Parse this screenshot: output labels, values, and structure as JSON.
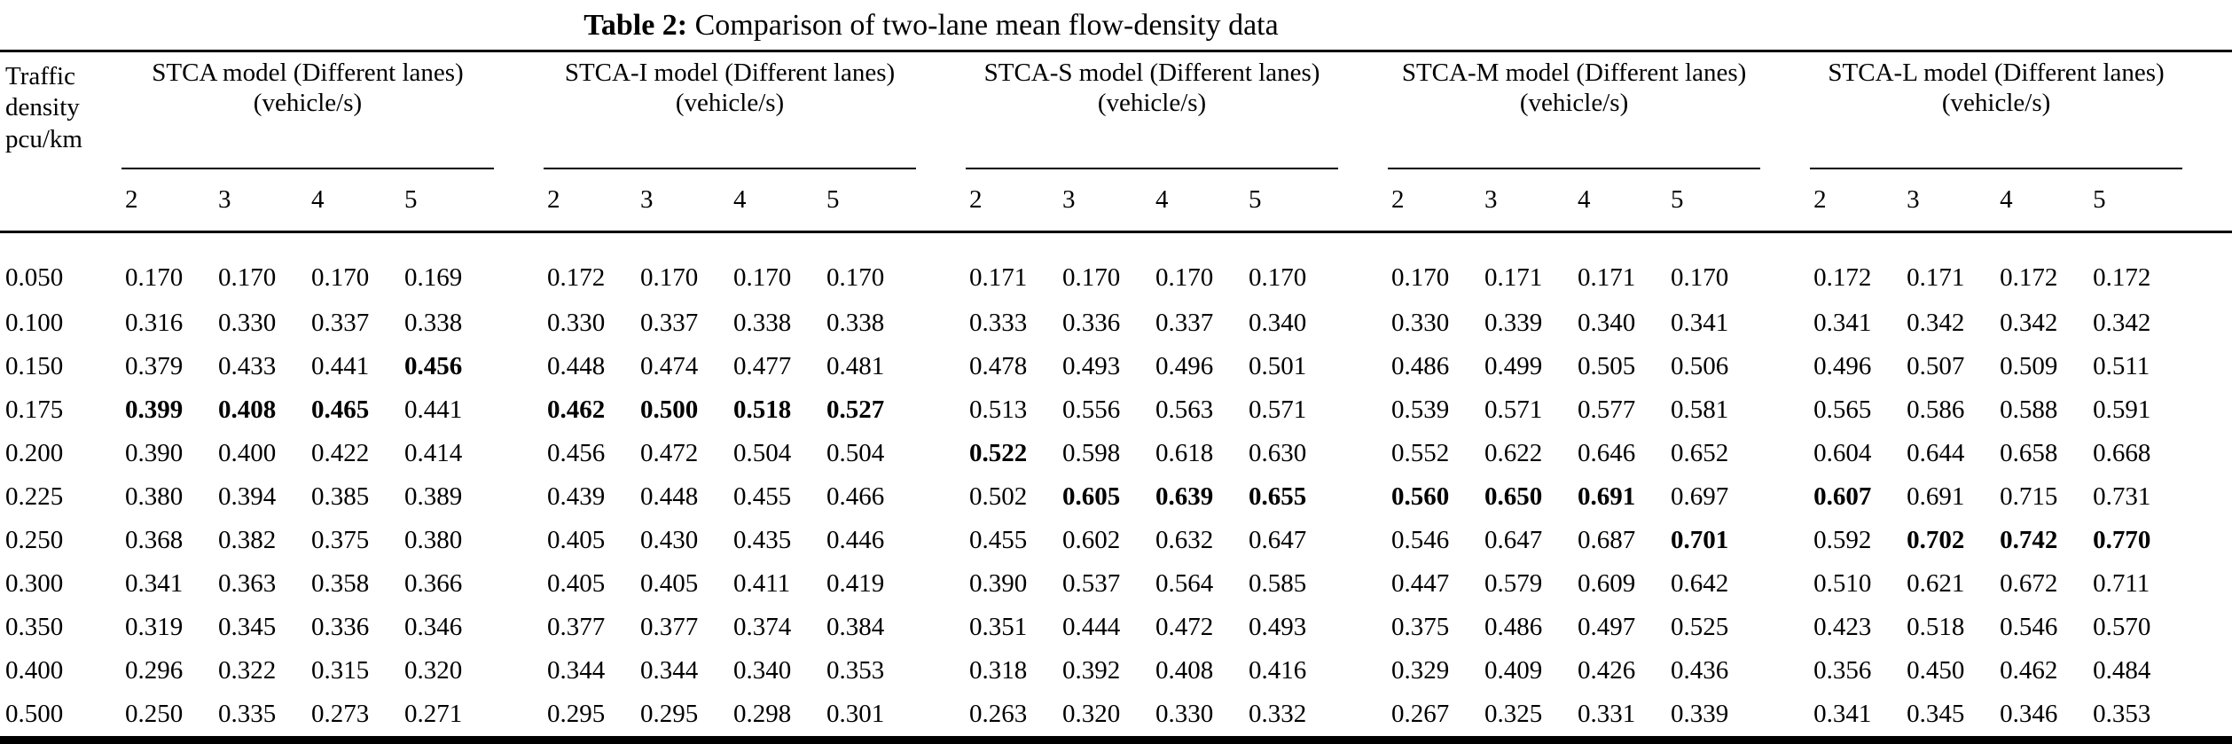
{
  "caption": {
    "label": "Table 2:",
    "text": "Comparison of two-lane mean flow-density data"
  },
  "table": {
    "density_header_lines": [
      "Traffic",
      "density",
      "pcu/km"
    ],
    "groups": [
      {
        "label": "STCA model (Different lanes) (vehicle/s)"
      },
      {
        "label": "STCA-I model (Different lanes) (vehicle/s)"
      },
      {
        "label": "STCA-S model (Different lanes) (vehicle/s)"
      },
      {
        "label": "STCA-M model (Different lanes) (vehicle/s)"
      },
      {
        "label": "STCA-L model (Different lanes) (vehicle/s)"
      }
    ],
    "lane_labels": [
      "2",
      "3",
      "4",
      "5"
    ],
    "rows": [
      {
        "density": "0.050",
        "cells": [
          "0.170",
          "0.170",
          "0.170",
          "0.169",
          "0.172",
          "0.170",
          "0.170",
          "0.170",
          "0.171",
          "0.170",
          "0.170",
          "0.170",
          "0.170",
          "0.171",
          "0.171",
          "0.170",
          "0.172",
          "0.171",
          "0.172",
          "0.172"
        ],
        "bold": []
      },
      {
        "density": "0.100",
        "cells": [
          "0.316",
          "0.330",
          "0.337",
          "0.338",
          "0.330",
          "0.337",
          "0.338",
          "0.338",
          "0.333",
          "0.336",
          "0.337",
          "0.340",
          "0.330",
          "0.339",
          "0.340",
          "0.341",
          "0.341",
          "0.342",
          "0.342",
          "0.342"
        ],
        "bold": []
      },
      {
        "density": "0.150",
        "cells": [
          "0.379",
          "0.433",
          "0.441",
          "0.456",
          "0.448",
          "0.474",
          "0.477",
          "0.481",
          "0.478",
          "0.493",
          "0.496",
          "0.501",
          "0.486",
          "0.499",
          "0.505",
          "0.506",
          "0.496",
          "0.507",
          "0.509",
          "0.511"
        ],
        "bold": [
          3
        ]
      },
      {
        "density": "0.175",
        "cells": [
          "0.399",
          "0.408",
          "0.465",
          "0.441",
          "0.462",
          "0.500",
          "0.518",
          "0.527",
          "0.513",
          "0.556",
          "0.563",
          "0.571",
          "0.539",
          "0.571",
          "0.577",
          "0.581",
          "0.565",
          "0.586",
          "0.588",
          "0.591"
        ],
        "bold": [
          0,
          1,
          2,
          4,
          5,
          6,
          7
        ]
      },
      {
        "density": "0.200",
        "cells": [
          "0.390",
          "0.400",
          "0.422",
          "0.414",
          "0.456",
          "0.472",
          "0.504",
          "0.504",
          "0.522",
          "0.598",
          "0.618",
          "0.630",
          "0.552",
          "0.622",
          "0.646",
          "0.652",
          "0.604",
          "0.644",
          "0.658",
          "0.668"
        ],
        "bold": [
          8
        ]
      },
      {
        "density": "0.225",
        "cells": [
          "0.380",
          "0.394",
          "0.385",
          "0.389",
          "0.439",
          "0.448",
          "0.455",
          "0.466",
          "0.502",
          "0.605",
          "0.639",
          "0.655",
          "0.560",
          "0.650",
          "0.691",
          "0.697",
          "0.607",
          "0.691",
          "0.715",
          "0.731"
        ],
        "bold": [
          9,
          10,
          11,
          12,
          13,
          14,
          16
        ]
      },
      {
        "density": "0.250",
        "cells": [
          "0.368",
          "0.382",
          "0.375",
          "0.380",
          "0.405",
          "0.430",
          "0.435",
          "0.446",
          "0.455",
          "0.602",
          "0.632",
          "0.647",
          "0.546",
          "0.647",
          "0.687",
          "0.701",
          "0.592",
          "0.702",
          "0.742",
          "0.770"
        ],
        "bold": [
          15,
          17,
          18,
          19
        ]
      },
      {
        "density": "0.300",
        "cells": [
          "0.341",
          "0.363",
          "0.358",
          "0.366",
          "0.405",
          "0.405",
          "0.411",
          "0.419",
          "0.390",
          "0.537",
          "0.564",
          "0.585",
          "0.447",
          "0.579",
          "0.609",
          "0.642",
          "0.510",
          "0.621",
          "0.672",
          "0.711"
        ],
        "bold": []
      },
      {
        "density": "0.350",
        "cells": [
          "0.319",
          "0.345",
          "0.336",
          "0.346",
          "0.377",
          "0.377",
          "0.374",
          "0.384",
          "0.351",
          "0.444",
          "0.472",
          "0.493",
          "0.375",
          "0.486",
          "0.497",
          "0.525",
          "0.423",
          "0.518",
          "0.546",
          "0.570"
        ],
        "bold": []
      },
      {
        "density": "0.400",
        "cells": [
          "0.296",
          "0.322",
          "0.315",
          "0.320",
          "0.344",
          "0.344",
          "0.340",
          "0.353",
          "0.318",
          "0.392",
          "0.408",
          "0.416",
          "0.329",
          "0.409",
          "0.426",
          "0.436",
          "0.356",
          "0.450",
          "0.462",
          "0.484"
        ],
        "bold": []
      },
      {
        "density": "0.500",
        "cells": [
          "0.250",
          "0.335",
          "0.273",
          "0.271",
          "0.295",
          "0.295",
          "0.298",
          "0.301",
          "0.263",
          "0.320",
          "0.330",
          "0.332",
          "0.267",
          "0.325",
          "0.331",
          "0.339",
          "0.341",
          "0.345",
          "0.346",
          "0.353"
        ],
        "bold": []
      }
    ]
  },
  "layout_colors": {
    "text": "#000000",
    "background": "#ffffff",
    "rule": "#000000"
  }
}
